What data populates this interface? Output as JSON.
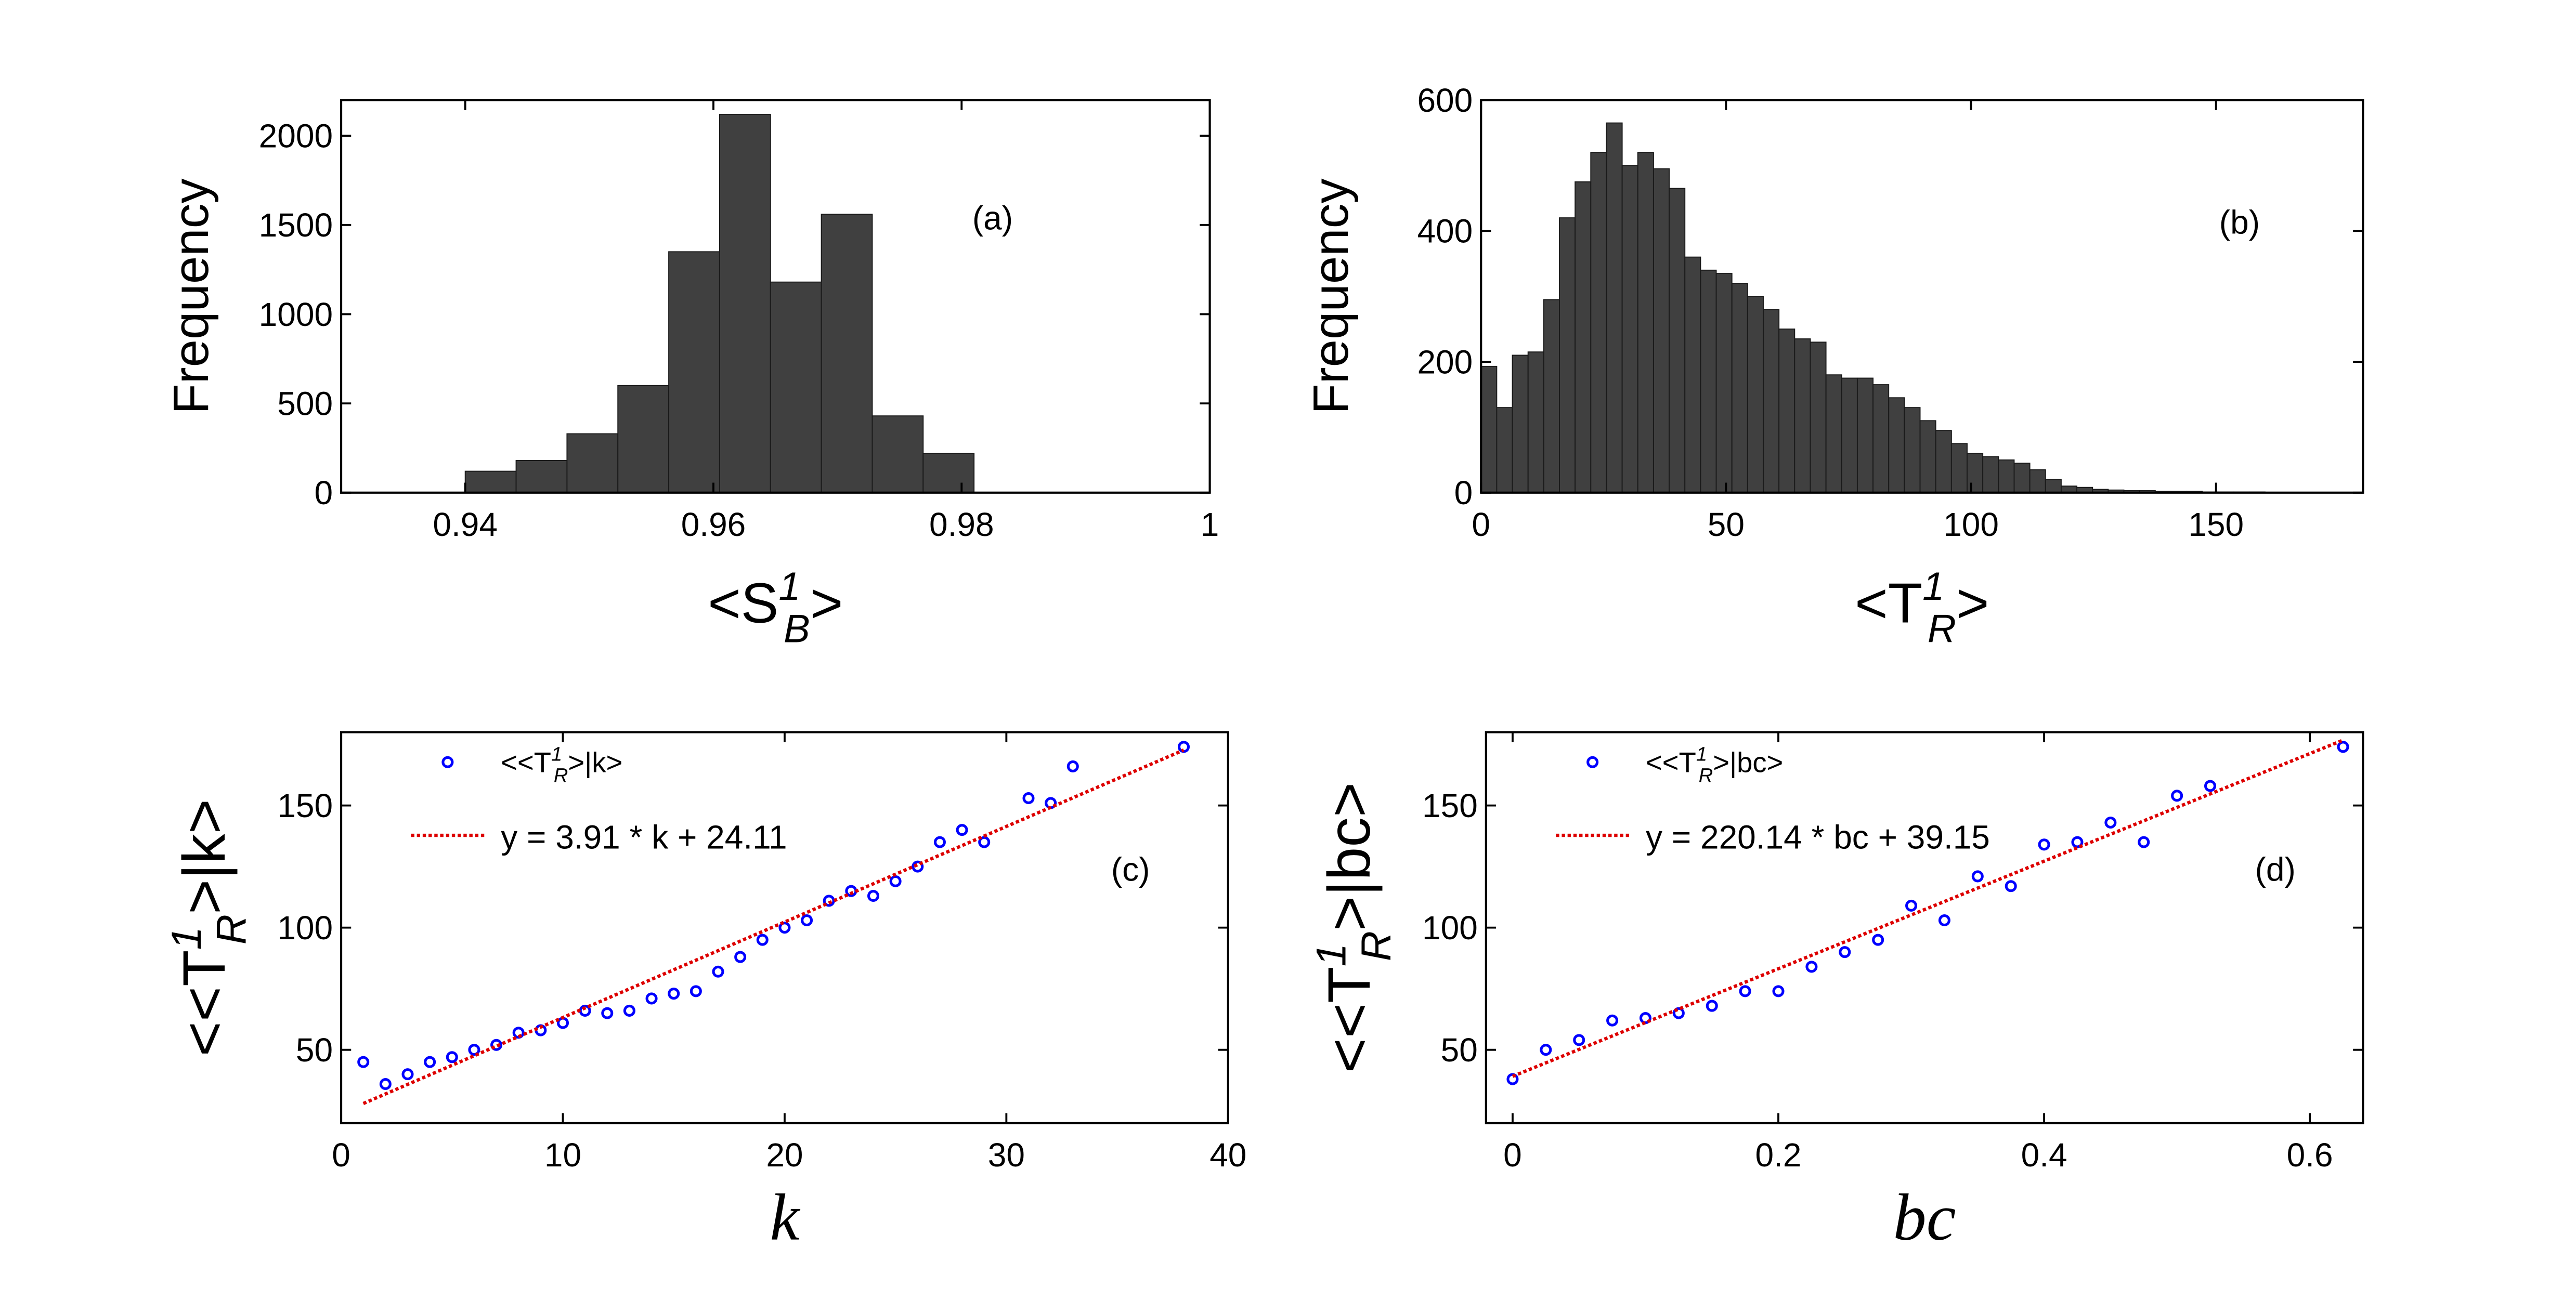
{
  "chart_data": [
    {
      "type": "histogram",
      "annotation": "(a)",
      "ylabel": "Frequency",
      "xlabel": {
        "text": "<S",
        "sup": "1",
        "sub": "B",
        "tail": ">"
      },
      "bins": [
        0.94,
        0.9441,
        0.9482,
        0.9523,
        0.9564,
        0.9605,
        0.9646,
        0.9687,
        0.9728,
        0.9769,
        0.981
      ],
      "values": [
        120,
        180,
        330,
        600,
        1350,
        2120,
        1180,
        1560,
        430,
        220
      ],
      "color": "#404040",
      "xlim": [
        0.93,
        1
      ],
      "xticks": [
        0.94,
        0.96,
        0.98,
        1
      ],
      "ylim": [
        0,
        2200
      ],
      "yticks": [
        0,
        500,
        1000,
        1500,
        2000
      ]
    },
    {
      "type": "histogram",
      "annotation": "(b)",
      "ylabel": "Frequency",
      "xlabel": {
        "text": "<T",
        "sup": "1",
        "sub": "R",
        "tail": ">"
      },
      "bins": [
        0,
        3.2,
        6.4,
        9.6,
        12.8,
        16,
        19.2,
        22.4,
        25.6,
        28.8,
        32,
        35.2,
        38.4,
        41.6,
        44.8,
        48,
        51.2,
        54.4,
        57.6,
        60.8,
        64,
        67.2,
        70.4,
        73.6,
        76.8,
        80,
        83.2,
        86.4,
        89.6,
        92.8,
        96,
        99.2,
        102.4,
        105.6,
        108.8,
        112,
        115.2,
        118.4,
        121.6,
        124.8,
        128,
        131.2,
        134.4,
        137.6,
        140.8,
        144,
        147.2,
        150.4,
        153.6,
        156.8,
        160
      ],
      "values": [
        193,
        130,
        210,
        215,
        295,
        420,
        475,
        520,
        565,
        500,
        520,
        495,
        465,
        360,
        340,
        335,
        320,
        300,
        280,
        250,
        235,
        230,
        180,
        175,
        175,
        165,
        145,
        130,
        110,
        95,
        75,
        60,
        55,
        50,
        45,
        35,
        20,
        10,
        8,
        5,
        4,
        3,
        3,
        2,
        2,
        2,
        1,
        1,
        1,
        1
      ],
      "color": "#404040",
      "xlim": [
        0,
        180
      ],
      "xticks": [
        0,
        50,
        100,
        150
      ],
      "ylim": [
        0,
        600
      ],
      "yticks": [
        0,
        200,
        400,
        600
      ]
    },
    {
      "type": "scatter",
      "annotation": "(c)",
      "xlabel": "k",
      "ylabel": {
        "text": "<<T",
        "sup": "1",
        "sub": "R",
        "tail": ">|k>"
      },
      "series": [
        {
          "name": {
            "text": "<<T",
            "sup": "1",
            "sub": "R",
            "tail": ">|k>"
          },
          "color": "#0000ff",
          "x": [
            1,
            2,
            3,
            4,
            5,
            6,
            7,
            8,
            9,
            10,
            11,
            12,
            13,
            14,
            15,
            16,
            17,
            18,
            19,
            20,
            21,
            22,
            23,
            24,
            25,
            26,
            27,
            28,
            29,
            31,
            32,
            33,
            38
          ],
          "values": [
            45,
            36,
            40,
            45,
            47,
            50,
            52,
            57,
            58,
            61,
            66,
            65,
            66,
            71,
            73,
            74,
            82,
            88,
            95,
            100,
            103,
            111,
            115,
            113,
            119,
            125,
            135,
            140,
            135,
            153,
            151,
            166,
            174
          ]
        },
        {
          "name": "y = 3.91 * k + 24.11",
          "color": "#dd0000",
          "line": "dotted",
          "x": [
            1,
            38
          ],
          "values": [
            28.02,
            172.69
          ]
        }
      ],
      "xlim": [
        0,
        40
      ],
      "xticks": [
        0,
        10,
        20,
        30,
        40
      ],
      "ylim": [
        20,
        180
      ],
      "yticks": [
        50,
        100,
        150
      ]
    },
    {
      "type": "scatter",
      "annotation": "(d)",
      "xlabel": "bc",
      "ylabel": {
        "text": "<<T",
        "sup": "1",
        "sub": "R",
        "tail": ">|bc>"
      },
      "series": [
        {
          "name": {
            "text": "<<T",
            "sup": "1",
            "sub": "R",
            "tail": ">|bc>"
          },
          "color": "#0000ff",
          "x": [
            0,
            0.025,
            0.05,
            0.075,
            0.1,
            0.125,
            0.15,
            0.175,
            0.2,
            0.225,
            0.25,
            0.275,
            0.3,
            0.325,
            0.35,
            0.375,
            0.4,
            0.425,
            0.45,
            0.475,
            0.5,
            0.525,
            0.625
          ],
          "values": [
            38,
            50,
            54,
            62,
            63,
            65,
            68,
            74,
            74,
            84,
            90,
            95,
            109,
            103,
            121,
            117,
            134,
            135,
            143,
            135,
            154,
            158,
            174
          ]
        },
        {
          "name": "y = 220.14 * bc + 39.15",
          "color": "#dd0000",
          "line": "dotted",
          "x": [
            0,
            0.625
          ],
          "values": [
            39.15,
            176.74
          ]
        }
      ],
      "xlim": [
        -0.02,
        0.64
      ],
      "xticks": [
        0,
        0.2,
        0.4,
        0.6
      ],
      "ylim": [
        20,
        180
      ],
      "yticks": [
        50,
        100,
        150
      ]
    }
  ]
}
